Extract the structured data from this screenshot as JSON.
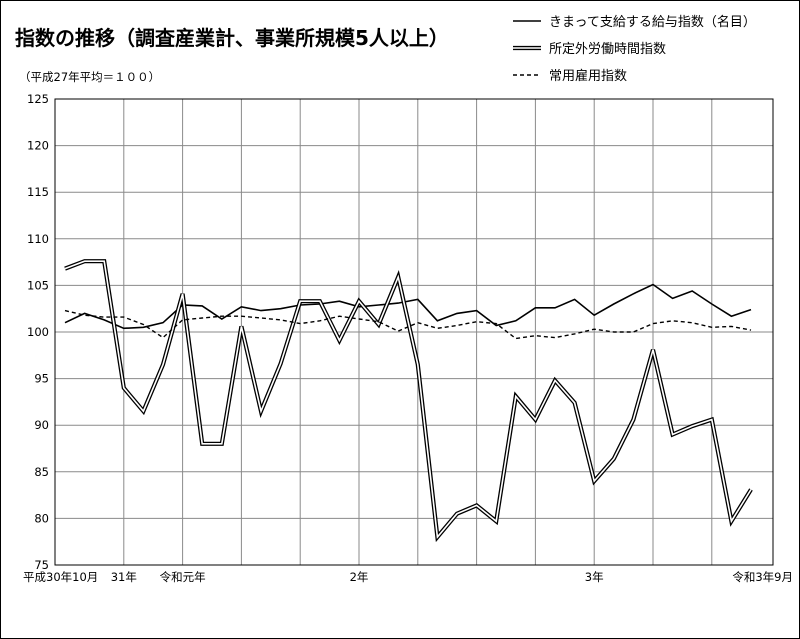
{
  "chart_data": {
    "type": "line",
    "title": "指数の推移（調査産業計、事業所規模5人以上）",
    "subtitle": "（平成27年平均＝１００）",
    "xlabel": "",
    "ylabel": "",
    "ylim": [
      75,
      125
    ],
    "yticks": [
      75,
      80,
      85,
      90,
      95,
      100,
      105,
      110,
      115,
      120,
      125
    ],
    "grid": true,
    "legend_position": "top-right",
    "x_tick_labels": [
      {
        "index": 0,
        "label": "平成30年10月"
      },
      {
        "index": 3,
        "label": "31年"
      },
      {
        "index": 6,
        "label": "令和元年"
      },
      {
        "index": 15,
        "label": "2年"
      },
      {
        "index": 27,
        "label": "3年"
      },
      {
        "index": 35,
        "label": "令和3年9月"
      }
    ],
    "x_months": [
      "2018-10",
      "2018-11",
      "2018-12",
      "2019-01",
      "2019-02",
      "2019-03",
      "2019-04",
      "2019-05",
      "2019-06",
      "2019-07",
      "2019-08",
      "2019-09",
      "2019-10",
      "2019-11",
      "2019-12",
      "2020-01",
      "2020-02",
      "2020-03",
      "2020-04",
      "2020-05",
      "2020-06",
      "2020-07",
      "2020-08",
      "2020-09",
      "2020-10",
      "2020-11",
      "2020-12",
      "2021-01",
      "2021-02",
      "2021-03",
      "2021-04",
      "2021-05",
      "2021-06",
      "2021-07",
      "2021-08",
      "2021-09"
    ],
    "series": [
      {
        "name": "きまって支給する給与指数（名目）",
        "style": "solid",
        "values": [
          101.0,
          102.0,
          101.3,
          100.4,
          100.5,
          101.0,
          102.9,
          102.8,
          101.4,
          102.7,
          102.3,
          102.5,
          102.9,
          103.0,
          103.3,
          102.7,
          102.9,
          103.1,
          103.5,
          101.2,
          102.0,
          102.3,
          100.7,
          101.2,
          102.6,
          102.6,
          103.5,
          101.8,
          103.0,
          104.1,
          105.1,
          103.6,
          104.4,
          103.0,
          101.7,
          102.4
        ]
      },
      {
        "name": "所定外労働時間指数",
        "style": "double",
        "values": [
          106.8,
          107.6,
          107.6,
          94.0,
          91.5,
          96.5,
          104.1,
          88.0,
          88.0,
          100.6,
          91.5,
          96.6,
          103.3,
          103.3,
          99.1,
          103.3,
          100.8,
          105.9,
          96.5,
          78.0,
          80.5,
          81.4,
          79.7,
          93.1,
          90.6,
          94.8,
          92.4,
          84.0,
          86.4,
          90.6,
          98.1,
          89.0,
          89.9,
          90.6,
          79.7,
          83.1
        ]
      },
      {
        "name": "常用雇用指数",
        "style": "dashed",
        "values": [
          102.3,
          101.8,
          101.6,
          101.6,
          100.8,
          99.4,
          101.3,
          101.5,
          101.7,
          101.7,
          101.5,
          101.3,
          100.9,
          101.2,
          101.7,
          101.4,
          101.1,
          100.1,
          101.0,
          100.4,
          100.7,
          101.1,
          100.9,
          99.3,
          99.6,
          99.4,
          99.8,
          100.3,
          100.0,
          100.0,
          100.9,
          101.2,
          101.0,
          100.5,
          100.6,
          100.2
        ]
      }
    ]
  }
}
